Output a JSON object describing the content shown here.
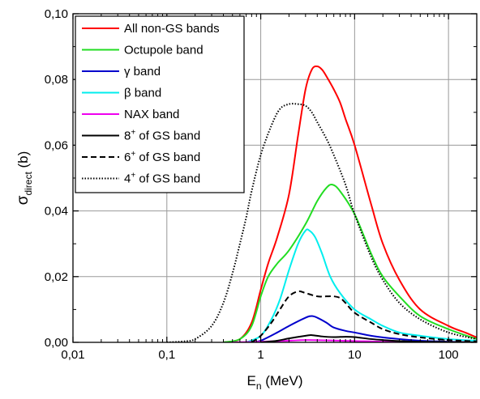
{
  "chart_data": {
    "type": "line",
    "xlabel": {
      "main": "E",
      "sub": "n",
      "rest": " (MeV)"
    },
    "ylabel": {
      "main": "σ",
      "sub": "direct",
      "rest": " (b)"
    },
    "xscale": "log",
    "xlim": [
      0.01,
      200
    ],
    "ylim": [
      0,
      0.1
    ],
    "grid": true,
    "legend_position": "top-left",
    "x_ticks": [
      {
        "value": 0.01,
        "label": "0,01"
      },
      {
        "value": 0.1,
        "label": "0,1"
      },
      {
        "value": 1,
        "label": "1"
      },
      {
        "value": 10,
        "label": "10"
      },
      {
        "value": 100,
        "label": "100"
      }
    ],
    "y_ticks": [
      {
        "value": 0.0,
        "label": "0,00"
      },
      {
        "value": 0.02,
        "label": "0,02"
      },
      {
        "value": 0.04,
        "label": "0,04"
      },
      {
        "value": 0.06,
        "label": "0,06"
      },
      {
        "value": 0.08,
        "label": "0,08"
      },
      {
        "value": 0.1,
        "label": "0,10"
      }
    ],
    "series": [
      {
        "name": "All non-GS bands",
        "label_main": "All non-GS bands",
        "label_sup": "",
        "label_rest": "",
        "color": "#ff0000",
        "dash": "solid",
        "points": [
          [
            0.4,
            0
          ],
          [
            0.6,
            0.001
          ],
          [
            0.8,
            0.006
          ],
          [
            1.0,
            0.016
          ],
          [
            1.2,
            0.024
          ],
          [
            1.5,
            0.032
          ],
          [
            2.0,
            0.045
          ],
          [
            2.5,
            0.063
          ],
          [
            3.0,
            0.077
          ],
          [
            3.5,
            0.083
          ],
          [
            4.0,
            0.084
          ],
          [
            4.5,
            0.083
          ],
          [
            5.0,
            0.081
          ],
          [
            6.0,
            0.077
          ],
          [
            7.0,
            0.073
          ],
          [
            8.0,
            0.068
          ],
          [
            10,
            0.06
          ],
          [
            15,
            0.042
          ],
          [
            20,
            0.03
          ],
          [
            30,
            0.019
          ],
          [
            50,
            0.01
          ],
          [
            100,
            0.005
          ],
          [
            150,
            0.003
          ],
          [
            200,
            0.0015
          ]
        ]
      },
      {
        "name": "Octupole band",
        "label_main": "Octupole band",
        "label_sup": "",
        "label_rest": "",
        "color": "#22dd22",
        "dash": "solid",
        "points": [
          [
            0.4,
            0
          ],
          [
            0.6,
            0.001
          ],
          [
            0.8,
            0.005
          ],
          [
            1.0,
            0.014
          ],
          [
            1.2,
            0.02
          ],
          [
            1.5,
            0.024
          ],
          [
            2.0,
            0.028
          ],
          [
            3.0,
            0.036
          ],
          [
            4.0,
            0.043
          ],
          [
            5.0,
            0.047
          ],
          [
            5.8,
            0.048
          ],
          [
            7.0,
            0.046
          ],
          [
            10,
            0.039
          ],
          [
            15,
            0.027
          ],
          [
            20,
            0.02
          ],
          [
            30,
            0.014
          ],
          [
            50,
            0.008
          ],
          [
            100,
            0.004
          ],
          [
            200,
            0.001
          ]
        ]
      },
      {
        "name": "γ band",
        "label_main": "γ band",
        "label_sup": "",
        "label_rest": "",
        "color": "#0000cc",
        "dash": "solid",
        "points": [
          [
            0.8,
            0
          ],
          [
            1.0,
            0.0005
          ],
          [
            1.5,
            0.003
          ],
          [
            2.0,
            0.005
          ],
          [
            3.0,
            0.0075
          ],
          [
            3.5,
            0.008
          ],
          [
            4.0,
            0.0075
          ],
          [
            5.0,
            0.006
          ],
          [
            6.0,
            0.0045
          ],
          [
            8.0,
            0.0035
          ],
          [
            10,
            0.003
          ],
          [
            15,
            0.002
          ],
          [
            20,
            0.0015
          ],
          [
            30,
            0.001
          ],
          [
            50,
            0.0005
          ],
          [
            100,
            0.0002
          ],
          [
            200,
            0
          ]
        ]
      },
      {
        "name": "β band",
        "label_main": "β band",
        "label_sup": "",
        "label_rest": "",
        "color": "#00eeee",
        "dash": "solid",
        "points": [
          [
            0.7,
            0
          ],
          [
            1.0,
            0.002
          ],
          [
            1.3,
            0.007
          ],
          [
            1.6,
            0.013
          ],
          [
            2.0,
            0.022
          ],
          [
            2.5,
            0.03
          ],
          [
            3.0,
            0.034
          ],
          [
            3.3,
            0.034
          ],
          [
            3.8,
            0.032
          ],
          [
            4.5,
            0.027
          ],
          [
            5.5,
            0.02
          ],
          [
            7.0,
            0.015
          ],
          [
            10,
            0.01
          ],
          [
            15,
            0.007
          ],
          [
            20,
            0.005
          ],
          [
            30,
            0.003
          ],
          [
            50,
            0.002
          ],
          [
            100,
            0.001
          ],
          [
            200,
            0.0005
          ]
        ]
      },
      {
        "name": "NAX band",
        "label_main": "NAX band",
        "label_sup": "",
        "label_rest": "",
        "color": "#ee00ee",
        "dash": "solid",
        "points": [
          [
            0.5,
            0
          ],
          [
            1.0,
            0.0002
          ],
          [
            2.0,
            0.0005
          ],
          [
            3.0,
            0.0007
          ],
          [
            5.0,
            0.0006
          ],
          [
            10,
            0.0004
          ],
          [
            20,
            0.0002
          ],
          [
            50,
            0.0001
          ],
          [
            200,
            0
          ]
        ]
      },
      {
        "name": "8+ of GS band",
        "label_main": "8",
        "label_sup": "+",
        "label_rest": " of GS band",
        "color": "#000000",
        "dash": "solid",
        "points": [
          [
            1.0,
            0
          ],
          [
            1.5,
            0.0005
          ],
          [
            2.0,
            0.0012
          ],
          [
            3.0,
            0.002
          ],
          [
            3.5,
            0.0022
          ],
          [
            4.5,
            0.0018
          ],
          [
            6.0,
            0.0016
          ],
          [
            8.0,
            0.0017
          ],
          [
            10,
            0.0016
          ],
          [
            15,
            0.001
          ],
          [
            20,
            0.0007
          ],
          [
            30,
            0.0004
          ],
          [
            50,
            0.0002
          ],
          [
            200,
            0
          ]
        ]
      },
      {
        "name": "6+ of GS band",
        "label_main": "6",
        "label_sup": "+",
        "label_rest": " of GS band",
        "color": "#000000",
        "dash": "dashed",
        "points": [
          [
            0.8,
            0
          ],
          [
            1.0,
            0.002
          ],
          [
            1.3,
            0.006
          ],
          [
            1.6,
            0.01
          ],
          [
            2.0,
            0.014
          ],
          [
            2.5,
            0.0155
          ],
          [
            3.0,
            0.015
          ],
          [
            4.0,
            0.014
          ],
          [
            5.0,
            0.014
          ],
          [
            6.0,
            0.014
          ],
          [
            7.0,
            0.0135
          ],
          [
            8.0,
            0.012
          ],
          [
            10,
            0.009
          ],
          [
            15,
            0.006
          ],
          [
            20,
            0.004
          ],
          [
            30,
            0.0025
          ],
          [
            50,
            0.0015
          ],
          [
            100,
            0.0007
          ],
          [
            200,
            0.0003
          ]
        ]
      },
      {
        "name": "4+ of GS band",
        "label_main": "4",
        "label_sup": "+",
        "label_rest": " of GS band",
        "color": "#000000",
        "dash": "dotted",
        "points": [
          [
            0.1,
            0
          ],
          [
            0.15,
            0.0003
          ],
          [
            0.2,
            0.001
          ],
          [
            0.3,
            0.005
          ],
          [
            0.4,
            0.012
          ],
          [
            0.5,
            0.021
          ],
          [
            0.6,
            0.03
          ],
          [
            0.7,
            0.038
          ],
          [
            0.8,
            0.046
          ],
          [
            1.0,
            0.057
          ],
          [
            1.3,
            0.066
          ],
          [
            1.6,
            0.071
          ],
          [
            2.0,
            0.0725
          ],
          [
            2.5,
            0.0725
          ],
          [
            3.0,
            0.072
          ],
          [
            3.5,
            0.07
          ],
          [
            4.0,
            0.067
          ],
          [
            5.0,
            0.062
          ],
          [
            6.0,
            0.057
          ],
          [
            8.0,
            0.048
          ],
          [
            10,
            0.039
          ],
          [
            15,
            0.026
          ],
          [
            20,
            0.019
          ],
          [
            30,
            0.012
          ],
          [
            50,
            0.007
          ],
          [
            100,
            0.003
          ],
          [
            200,
            0.001
          ]
        ]
      }
    ]
  }
}
